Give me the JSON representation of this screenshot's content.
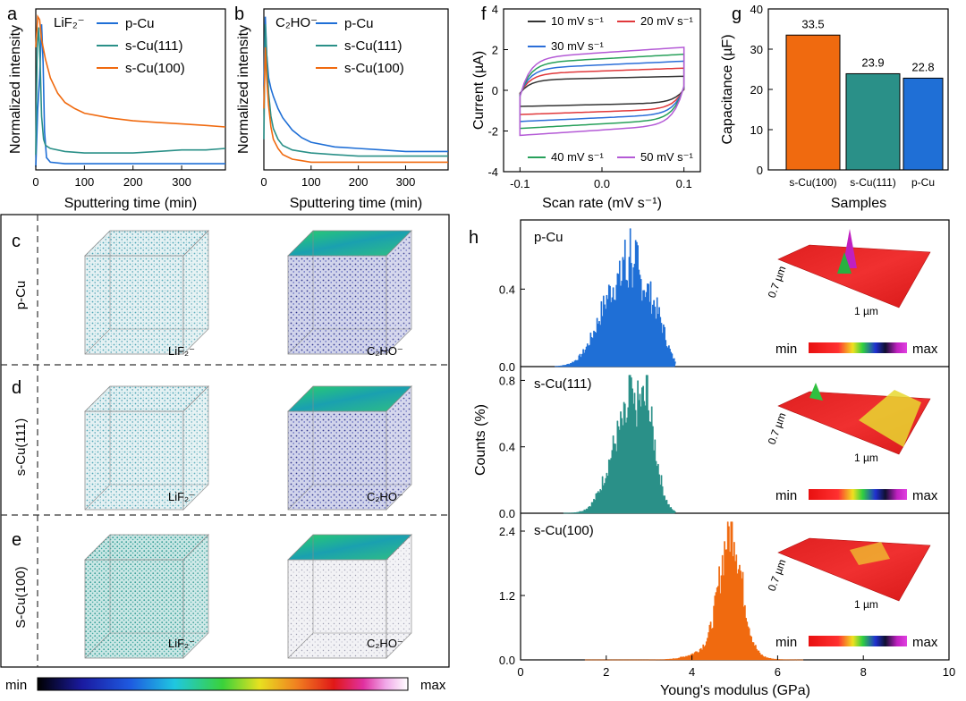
{
  "colors": {
    "pCu": "#1f6fd6",
    "s111": "#2a9088",
    "s100": "#f06a0f",
    "cv10": "#333333",
    "cv20": "#e0383b",
    "cv30": "#2b6ed8",
    "cv40": "#27a05a",
    "cv50": "#b45ad6"
  },
  "panels": {
    "a": "a",
    "b": "b",
    "c": "c",
    "d": "d",
    "e": "e",
    "f": "f",
    "g": "g",
    "h": "h"
  },
  "labels3d": {
    "rows": [
      "p-Cu",
      "s-Cu(111)",
      "S-Cu(100)"
    ],
    "lif": "LiF₂⁻",
    "c2ho": "C₂HO⁻",
    "scale_min": "min",
    "scale_max": "max"
  },
  "afm": {
    "y_label": "0.7 µm",
    "x_label": "1 µm",
    "min": "min",
    "max": "max"
  },
  "chart_data": [
    {
      "id": "a",
      "type": "line",
      "annotation": "LiF₂⁻",
      "xlabel": "Sputtering time (min)",
      "ylabel": "Normalized intensity",
      "xlim": [
        0,
        390
      ],
      "ylim": [
        0,
        1.05
      ],
      "xticks": [
        "0",
        "100",
        "200",
        "300"
      ],
      "series": [
        {
          "name": "p-Cu",
          "x": [
            0,
            4,
            8,
            12,
            15,
            18,
            22,
            30,
            60,
            100,
            200,
            300,
            390
          ],
          "y": [
            0.02,
            0.4,
            0.6,
            0.95,
            0.7,
            0.25,
            0.08,
            0.05,
            0.04,
            0.04,
            0.04,
            0.04,
            0.04
          ]
        },
        {
          "name": "s-Cu(111)",
          "x": [
            0,
            3,
            6,
            9,
            12,
            16,
            20,
            30,
            60,
            100,
            150,
            200,
            250,
            300,
            350,
            390
          ],
          "y": [
            0.1,
            0.8,
            0.93,
            0.7,
            0.35,
            0.2,
            0.16,
            0.14,
            0.12,
            0.11,
            0.11,
            0.11,
            0.12,
            0.13,
            0.13,
            0.14
          ]
        },
        {
          "name": "s-Cu(100)",
          "x": [
            0,
            4,
            8,
            12,
            20,
            30,
            45,
            60,
            80,
            100,
            150,
            200,
            250,
            300,
            350,
            390
          ],
          "y": [
            0.8,
            1.0,
            0.98,
            0.85,
            0.72,
            0.6,
            0.5,
            0.44,
            0.4,
            0.37,
            0.34,
            0.32,
            0.31,
            0.3,
            0.29,
            0.28
          ]
        }
      ]
    },
    {
      "id": "b",
      "type": "line",
      "annotation": "C₂HO⁻",
      "xlabel": "Sputtering time (min)",
      "ylabel": "Normalized intensity",
      "xlim": [
        0,
        390
      ],
      "ylim": [
        0,
        1.05
      ],
      "xticks": [
        "0",
        "100",
        "200",
        "300"
      ],
      "series": [
        {
          "name": "p-Cu",
          "x": [
            0,
            3,
            6,
            10,
            15,
            20,
            30,
            40,
            60,
            80,
            100,
            150,
            200,
            250,
            300,
            350,
            390
          ],
          "y": [
            0.55,
            1.0,
            0.75,
            0.6,
            0.53,
            0.48,
            0.4,
            0.34,
            0.26,
            0.21,
            0.18,
            0.15,
            0.14,
            0.13,
            0.12,
            0.12,
            0.12
          ]
        },
        {
          "name": "s-Cu(111)",
          "x": [
            0,
            3,
            6,
            10,
            15,
            20,
            30,
            40,
            60,
            80,
            100,
            150,
            200,
            250,
            300,
            350,
            390
          ],
          "y": [
            0.2,
            0.95,
            0.75,
            0.5,
            0.35,
            0.27,
            0.2,
            0.16,
            0.13,
            0.12,
            0.11,
            0.1,
            0.09,
            0.09,
            0.09,
            0.09,
            0.09
          ]
        },
        {
          "name": "s-Cu(100)",
          "x": [
            0,
            3,
            6,
            10,
            15,
            20,
            30,
            40,
            60,
            80,
            100,
            150,
            200,
            250,
            300,
            350,
            390
          ],
          "y": [
            0.4,
            0.8,
            0.6,
            0.42,
            0.28,
            0.2,
            0.14,
            0.1,
            0.07,
            0.06,
            0.05,
            0.05,
            0.05,
            0.05,
            0.05,
            0.05,
            0.05
          ]
        }
      ]
    },
    {
      "id": "f",
      "type": "line",
      "xlabel": "Scan rate (mV s⁻¹)",
      "ylabel": "Current (µA)",
      "xlim": [
        -0.12,
        0.12
      ],
      "ylim": [
        -4,
        4
      ],
      "xticks": [
        "-0.1",
        "0.0",
        "0.1"
      ],
      "yticks": [
        "-4",
        "-2",
        "0",
        "2",
        "4"
      ],
      "series": [
        {
          "name": "10 mV s⁻¹",
          "amp": 0.65,
          "offset": -0.05
        },
        {
          "name": "20 mV s⁻¹",
          "amp": 1.0,
          "offset": -0.05
        },
        {
          "name": "30 mV s⁻¹",
          "amp": 1.3,
          "offset": -0.05
        },
        {
          "name": "40 mV s⁻¹",
          "amp": 1.6,
          "offset": -0.05
        },
        {
          "name": "50 mV s⁻¹",
          "amp": 1.9,
          "offset": -0.05
        }
      ]
    },
    {
      "id": "g",
      "type": "bar",
      "xlabel": "Samples",
      "ylabel": "Capacitance (µF)",
      "categories": [
        "s-Cu(100)",
        "s-Cu(111)",
        "p-Cu"
      ],
      "values": [
        33.5,
        23.9,
        22.8
      ],
      "value_labels": [
        "33.5",
        "23.9",
        "22.8"
      ],
      "ylim": [
        0,
        40
      ],
      "yticks": [
        "0",
        "10",
        "20",
        "30",
        "40"
      ]
    },
    {
      "id": "h",
      "type": "histogram",
      "xlabel": "Young's modulus (GPa)",
      "ylabel": "Counts (%)",
      "xlim": [
        0,
        10
      ],
      "xticks": [
        "0",
        "2",
        "4",
        "6",
        "8",
        "10"
      ],
      "subplots": [
        {
          "name": "p-Cu",
          "ylim": [
            0,
            0.72
          ],
          "yticks": [
            "0.0",
            "0.4"
          ],
          "ytick_vals": [
            0,
            0.4
          ],
          "components": [
            {
              "mu": 2.3,
              "sigma": 0.45,
              "amp": 0.45
            },
            {
              "mu": 2.9,
              "sigma": 0.25,
              "amp": 0.22
            },
            {
              "mu": 3.25,
              "sigma": 0.18,
              "amp": 0.12
            }
          ],
          "range": [
            0.8,
            3.6
          ],
          "spikes": [
            [
              2.55,
              0.66
            ],
            [
              2.7,
              0.55
            ],
            [
              2.4,
              0.58
            ]
          ]
        },
        {
          "name": "s-Cu(111)",
          "ylim": [
            0,
            0.84
          ],
          "yticks": [
            "0.0",
            "0.4",
            "0.8"
          ],
          "ytick_vals": [
            0,
            0.4,
            0.8
          ],
          "components": [
            {
              "mu": 2.45,
              "sigma": 0.38,
              "amp": 0.55
            },
            {
              "mu": 2.95,
              "sigma": 0.22,
              "amp": 0.42
            }
          ],
          "range": [
            1.0,
            3.6
          ],
          "spikes": [
            [
              2.55,
              0.82
            ],
            [
              2.95,
              0.8
            ],
            [
              2.75,
              0.65
            ]
          ]
        },
        {
          "name": "s-Cu(100)",
          "ylim": [
            0,
            2.6
          ],
          "yticks": [
            "0.0",
            "1.2",
            "2.4"
          ],
          "ytick_vals": [
            0,
            1.2,
            2.4
          ],
          "components": [
            {
              "mu": 4.9,
              "sigma": 0.25,
              "amp": 2.2
            },
            {
              "mu": 4.7,
              "sigma": 0.5,
              "amp": 0.3
            }
          ],
          "range": [
            1.5,
            6.6
          ],
          "spikes": [
            [
              4.95,
              2.55
            ],
            [
              4.85,
              2.3
            ]
          ]
        }
      ]
    }
  ]
}
